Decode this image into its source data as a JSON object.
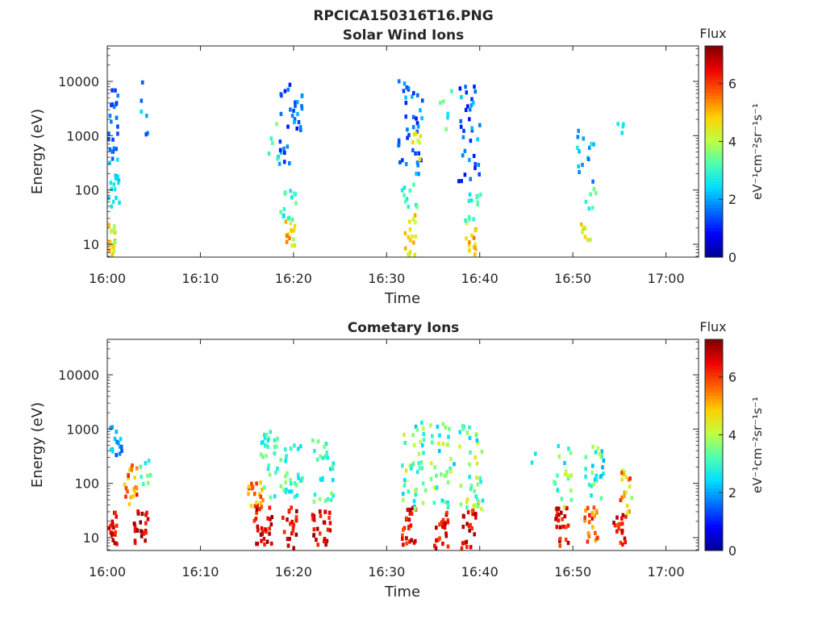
{
  "figure_title": "RPCICA150316T16.PNG",
  "colormap": [
    "#00008f",
    "#0000ff",
    "#0070ff",
    "#00e0ff",
    "#50ffaf",
    "#c0ff40",
    "#ffd000",
    "#ff6000",
    "#ef0000",
    "#800000"
  ],
  "chart_data": [
    {
      "type": "heatmap",
      "title": "Solar Wind Ions",
      "xlabel": "Time",
      "ylabel": "Energy (eV)",
      "x_ticks": [
        "16:00",
        "16:10",
        "16:20",
        "16:30",
        "16:40",
        "16:50",
        "17:00"
      ],
      "x_range_minutes": [
        0,
        63.5
      ],
      "y_scale": "log",
      "y_ticks": [
        "10",
        "100",
        "1000",
        "10000"
      ],
      "y_range": [
        5.8,
        45000
      ],
      "colorbar": {
        "label": "Flux",
        "units": "eV⁻¹cm⁻²sr⁻¹s⁻¹",
        "ticks": [
          "0",
          "2",
          "4",
          "6"
        ],
        "range": [
          0,
          7.3
        ]
      },
      "clusters": [
        {
          "t": 0.3,
          "dt": 0.8,
          "e1": 6,
          "e2": 30,
          "n": 20,
          "v1": 3.6,
          "v2": 5.6
        },
        {
          "t": 0.6,
          "dt": 1.2,
          "e1": 40,
          "e2": 400,
          "n": 16,
          "v1": 2.2,
          "v2": 2.8
        },
        {
          "t": 0.6,
          "dt": 1.2,
          "e1": 400,
          "e2": 12000,
          "n": 22,
          "v1": 1.0,
          "v2": 1.8
        },
        {
          "t": 3.8,
          "dt": 1.2,
          "e1": 500,
          "e2": 11000,
          "n": 6,
          "v1": 1.2,
          "v2": 2.4
        },
        {
          "t": 19.3,
          "dt": 1.4,
          "e1": 10,
          "e2": 30,
          "n": 14,
          "v1": 3.8,
          "v2": 5.6
        },
        {
          "t": 19.3,
          "dt": 1.8,
          "e1": 30,
          "e2": 120,
          "n": 14,
          "v1": 2.4,
          "v2": 3.6
        },
        {
          "t": 19.5,
          "dt": 2.6,
          "e1": 300,
          "e2": 13000,
          "n": 34,
          "v1": 0.9,
          "v2": 2.2
        },
        {
          "t": 17.8,
          "dt": 1.2,
          "e1": 400,
          "e2": 2500,
          "n": 5,
          "v1": 2.8,
          "v2": 4.0
        },
        {
          "t": 32.4,
          "dt": 1.2,
          "e1": 6,
          "e2": 40,
          "n": 16,
          "v1": 3.8,
          "v2": 5.2
        },
        {
          "t": 32.4,
          "dt": 1.8,
          "e1": 40,
          "e2": 150,
          "n": 10,
          "v1": 2.4,
          "v2": 3.6
        },
        {
          "t": 32.4,
          "dt": 2.6,
          "e1": 200,
          "e2": 13000,
          "n": 38,
          "v1": 0.9,
          "v2": 2.4
        },
        {
          "t": 33.0,
          "dt": 1.0,
          "e1": 400,
          "e2": 1200,
          "n": 8,
          "v1": 3.8,
          "v2": 4.8
        },
        {
          "t": 36.2,
          "dt": 1.6,
          "e1": 1000,
          "e2": 9000,
          "n": 6,
          "v1": 1.6,
          "v2": 3.6
        },
        {
          "t": 38.9,
          "dt": 1.2,
          "e1": 6,
          "e2": 30,
          "n": 16,
          "v1": 3.8,
          "v2": 5.6
        },
        {
          "t": 39.2,
          "dt": 1.8,
          "e1": 30,
          "e2": 110,
          "n": 12,
          "v1": 2.4,
          "v2": 3.4
        },
        {
          "t": 38.8,
          "dt": 2.4,
          "e1": 150,
          "e2": 14000,
          "n": 34,
          "v1": 0.9,
          "v2": 2.4
        },
        {
          "t": 51.3,
          "dt": 1.2,
          "e1": 10,
          "e2": 40,
          "n": 8,
          "v1": 3.6,
          "v2": 5.2
        },
        {
          "t": 51.8,
          "dt": 1.2,
          "e1": 40,
          "e2": 120,
          "n": 6,
          "v1": 2.6,
          "v2": 3.6
        },
        {
          "t": 51.3,
          "dt": 2.0,
          "e1": 150,
          "e2": 1800,
          "n": 14,
          "v1": 1.6,
          "v2": 3.0
        },
        {
          "t": 54.9,
          "dt": 0.8,
          "e1": 1200,
          "e2": 1800,
          "n": 4,
          "v1": 2.2,
          "v2": 2.8
        }
      ]
    },
    {
      "type": "heatmap",
      "title": "Cometary Ions",
      "xlabel": "Time",
      "ylabel": "Energy (eV)",
      "x_ticks": [
        "16:00",
        "16:10",
        "16:20",
        "16:30",
        "16:40",
        "16:50",
        "17:00"
      ],
      "x_range_minutes": [
        0,
        63.5
      ],
      "y_scale": "log",
      "y_ticks": [
        "10",
        "100",
        "1000",
        "10000"
      ],
      "y_range": [
        5.8,
        45000
      ],
      "colorbar": {
        "label": "Flux",
        "units": "eV⁻¹cm⁻²sr⁻¹s⁻¹",
        "ticks": [
          "0",
          "2",
          "4",
          "6"
        ],
        "range": [
          0,
          7.3
        ]
      },
      "clusters": [
        {
          "t": 0.4,
          "dt": 1.0,
          "e1": 6,
          "e2": 35,
          "n": 24,
          "v1": 6.0,
          "v2": 7.0
        },
        {
          "t": 0.8,
          "dt": 1.4,
          "e1": 250,
          "e2": 1300,
          "n": 16,
          "v1": 1.4,
          "v2": 2.6
        },
        {
          "t": 2.4,
          "dt": 1.4,
          "e1": 40,
          "e2": 250,
          "n": 22,
          "v1": 4.6,
          "v2": 6.4
        },
        {
          "t": 3.5,
          "dt": 1.6,
          "e1": 8,
          "e2": 35,
          "n": 24,
          "v1": 6.2,
          "v2": 7.2
        },
        {
          "t": 4.0,
          "dt": 1.6,
          "e1": 100,
          "e2": 400,
          "n": 8,
          "v1": 2.4,
          "v2": 3.8
        },
        {
          "t": 15.8,
          "dt": 1.6,
          "e1": 40,
          "e2": 120,
          "n": 20,
          "v1": 4.6,
          "v2": 6.4
        },
        {
          "t": 16.6,
          "dt": 2.0,
          "e1": 8,
          "e2": 40,
          "n": 28,
          "v1": 6.0,
          "v2": 7.2
        },
        {
          "t": 17.4,
          "dt": 2.2,
          "e1": 60,
          "e2": 1000,
          "n": 30,
          "v1": 2.4,
          "v2": 3.8
        },
        {
          "t": 19.6,
          "dt": 1.8,
          "e1": 6,
          "e2": 40,
          "n": 24,
          "v1": 5.8,
          "v2": 7.2
        },
        {
          "t": 19.8,
          "dt": 2.2,
          "e1": 60,
          "e2": 600,
          "n": 28,
          "v1": 2.4,
          "v2": 3.8
        },
        {
          "t": 22.8,
          "dt": 2.0,
          "e1": 8,
          "e2": 35,
          "n": 26,
          "v1": 6.0,
          "v2": 7.2
        },
        {
          "t": 23.0,
          "dt": 2.4,
          "e1": 50,
          "e2": 700,
          "n": 30,
          "v1": 2.4,
          "v2": 3.8
        },
        {
          "t": 32.3,
          "dt": 1.6,
          "e1": 6,
          "e2": 40,
          "n": 24,
          "v1": 5.8,
          "v2": 7.2
        },
        {
          "t": 32.8,
          "dt": 2.6,
          "e1": 35,
          "e2": 1500,
          "n": 40,
          "v1": 2.2,
          "v2": 4.4
        },
        {
          "t": 35.8,
          "dt": 1.6,
          "e1": 6,
          "e2": 40,
          "n": 24,
          "v1": 5.8,
          "v2": 7.2
        },
        {
          "t": 35.8,
          "dt": 2.6,
          "e1": 35,
          "e2": 1400,
          "n": 36,
          "v1": 2.2,
          "v2": 4.4
        },
        {
          "t": 38.7,
          "dt": 1.6,
          "e1": 6,
          "e2": 35,
          "n": 24,
          "v1": 5.8,
          "v2": 7.2
        },
        {
          "t": 38.9,
          "dt": 2.6,
          "e1": 35,
          "e2": 1400,
          "n": 40,
          "v1": 2.2,
          "v2": 4.6
        },
        {
          "t": 48.7,
          "dt": 1.4,
          "e1": 6,
          "e2": 40,
          "n": 24,
          "v1": 5.8,
          "v2": 7.2
        },
        {
          "t": 48.7,
          "dt": 2.0,
          "e1": 40,
          "e2": 600,
          "n": 20,
          "v1": 2.2,
          "v2": 4.2
        },
        {
          "t": 51.8,
          "dt": 1.6,
          "e1": 8,
          "e2": 40,
          "n": 22,
          "v1": 5.0,
          "v2": 6.6
        },
        {
          "t": 52.1,
          "dt": 2.2,
          "e1": 40,
          "e2": 550,
          "n": 26,
          "v1": 2.0,
          "v2": 4.2
        },
        {
          "t": 54.9,
          "dt": 1.4,
          "e1": 8,
          "e2": 30,
          "n": 18,
          "v1": 5.8,
          "v2": 7.0
        },
        {
          "t": 55.6,
          "dt": 1.4,
          "e1": 30,
          "e2": 200,
          "n": 18,
          "v1": 3.6,
          "v2": 6.2
        },
        {
          "t": 45.6,
          "dt": 0.6,
          "e1": 250,
          "e2": 400,
          "n": 2,
          "v1": 2.0,
          "v2": 2.6
        }
      ]
    }
  ]
}
